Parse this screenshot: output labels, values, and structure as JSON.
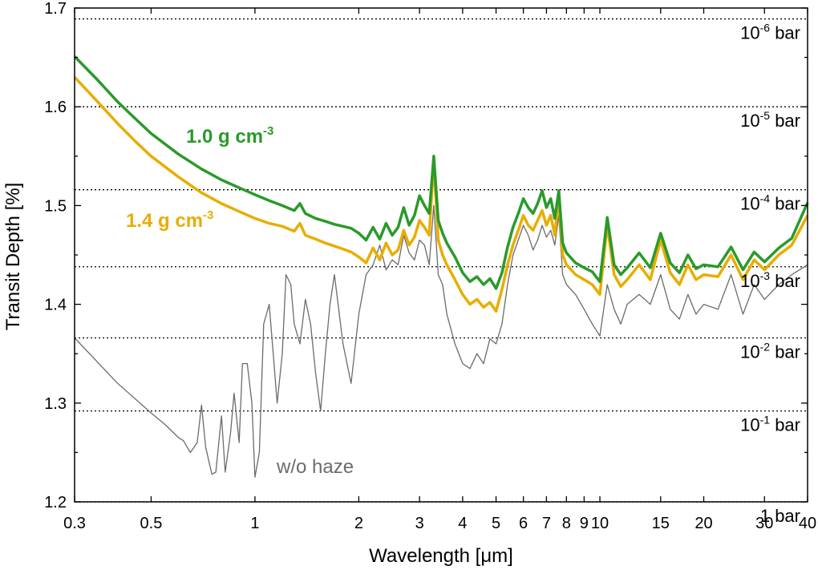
{
  "chart_data": {
    "type": "line",
    "xlabel_prefix": "Wavelength [",
    "xlabel_mu": "μ",
    "xlabel_suffix": "m]",
    "ylabel": "Transit Depth [%]",
    "xscale": "log",
    "xlim": [
      0.3,
      40
    ],
    "ylim": [
      1.2,
      1.7
    ],
    "x_ticks": [
      {
        "value": 0.3,
        "label": "0.3"
      },
      {
        "value": 0.5,
        "label": "0.5"
      },
      {
        "value": 1,
        "label": "1"
      },
      {
        "value": 2,
        "label": "2"
      },
      {
        "value": 3,
        "label": "3"
      },
      {
        "value": 4,
        "label": "4"
      },
      {
        "value": 5,
        "label": "5"
      },
      {
        "value": 6,
        "label": "6"
      },
      {
        "value": 7,
        "label": "7"
      },
      {
        "value": 8,
        "label": "8"
      },
      {
        "value": 9,
        "label": "9"
      },
      {
        "value": 10,
        "label": "10"
      },
      {
        "value": 15,
        "label": "15"
      },
      {
        "value": 20,
        "label": "20"
      },
      {
        "value": 30,
        "label": "30"
      },
      {
        "value": 40,
        "label": "40"
      }
    ],
    "y_ticks": [
      {
        "value": 1.2,
        "label": "1.2"
      },
      {
        "value": 1.3,
        "label": "1.3"
      },
      {
        "value": 1.4,
        "label": "1.4"
      },
      {
        "value": 1.5,
        "label": "1.5"
      },
      {
        "value": 1.6,
        "label": "1.6"
      },
      {
        "value": 1.7,
        "label": "1.7"
      }
    ],
    "pressure_levels": [
      {
        "y": 1.689,
        "base": "10",
        "exp": "-6",
        "unit": " bar"
      },
      {
        "y": 1.6,
        "base": "10",
        "exp": "-5",
        "unit": " bar"
      },
      {
        "y": 1.516,
        "base": "10",
        "exp": "-4",
        "unit": " bar"
      },
      {
        "y": 1.438,
        "base": "10",
        "exp": "-3",
        "unit": " bar"
      },
      {
        "y": 1.366,
        "base": "10",
        "exp": "-2",
        "unit": " bar"
      },
      {
        "y": 1.292,
        "base": "10",
        "exp": "-1",
        "unit": " bar"
      },
      {
        "y": 1.2,
        "base": "1",
        "exp": "",
        "unit": " bar"
      }
    ],
    "series": [
      {
        "name": "w/o haze",
        "color": "#6b6b6b",
        "x": [
          0.3,
          0.4,
          0.5,
          0.55,
          0.6,
          0.62,
          0.65,
          0.68,
          0.7,
          0.72,
          0.75,
          0.77,
          0.8,
          0.82,
          0.85,
          0.87,
          0.9,
          0.92,
          0.95,
          0.98,
          1.0,
          1.03,
          1.06,
          1.1,
          1.13,
          1.16,
          1.2,
          1.23,
          1.27,
          1.3,
          1.35,
          1.4,
          1.45,
          1.5,
          1.55,
          1.6,
          1.65,
          1.7,
          1.8,
          1.9,
          2.0,
          2.1,
          2.2,
          2.3,
          2.4,
          2.5,
          2.6,
          2.7,
          2.8,
          2.9,
          3.0,
          3.1,
          3.2,
          3.3,
          3.4,
          3.5,
          3.6,
          3.8,
          4.0,
          4.2,
          4.4,
          4.6,
          4.8,
          5.0,
          5.2,
          5.4,
          5.6,
          5.8,
          6.0,
          6.2,
          6.4,
          6.6,
          6.8,
          7.0,
          7.2,
          7.4,
          7.6,
          7.8,
          8.0,
          8.5,
          9.0,
          9.5,
          10.0,
          10.5,
          11.0,
          11.5,
          12.0,
          13.0,
          14.0,
          15.0,
          16.0,
          17.0,
          18.0,
          19.0,
          20.0,
          22.0,
          24.0,
          26.0,
          28.0,
          30.0,
          33.0,
          36.0,
          40.0
        ],
        "values": [
          1.366,
          1.32,
          1.29,
          1.278,
          1.265,
          1.262,
          1.25,
          1.26,
          1.298,
          1.255,
          1.228,
          1.23,
          1.287,
          1.23,
          1.27,
          1.31,
          1.26,
          1.34,
          1.34,
          1.3,
          1.225,
          1.25,
          1.38,
          1.4,
          1.35,
          1.3,
          1.35,
          1.43,
          1.42,
          1.38,
          1.36,
          1.405,
          1.38,
          1.33,
          1.292,
          1.35,
          1.4,
          1.43,
          1.36,
          1.32,
          1.39,
          1.43,
          1.44,
          1.46,
          1.435,
          1.445,
          1.44,
          1.47,
          1.452,
          1.445,
          1.465,
          1.46,
          1.44,
          1.5,
          1.43,
          1.42,
          1.39,
          1.36,
          1.34,
          1.335,
          1.35,
          1.34,
          1.365,
          1.36,
          1.38,
          1.42,
          1.45,
          1.465,
          1.48,
          1.47,
          1.455,
          1.465,
          1.48,
          1.468,
          1.475,
          1.46,
          1.49,
          1.43,
          1.42,
          1.41,
          1.395,
          1.38,
          1.368,
          1.42,
          1.395,
          1.38,
          1.4,
          1.41,
          1.4,
          1.43,
          1.395,
          1.385,
          1.41,
          1.39,
          1.4,
          1.395,
          1.43,
          1.39,
          1.42,
          1.405,
          1.42,
          1.43,
          1.44
        ]
      },
      {
        "name": "1.4 g cm-3",
        "label_text": "1.4 g cm",
        "label_exp": "-3",
        "color": "#e8ad00",
        "x": [
          0.3,
          0.35,
          0.4,
          0.45,
          0.5,
          0.6,
          0.7,
          0.8,
          0.9,
          1.0,
          1.1,
          1.2,
          1.3,
          1.35,
          1.4,
          1.5,
          1.6,
          1.7,
          1.8,
          1.9,
          2.0,
          2.1,
          2.2,
          2.3,
          2.4,
          2.5,
          2.6,
          2.7,
          2.8,
          2.9,
          3.0,
          3.1,
          3.2,
          3.3,
          3.4,
          3.5,
          3.6,
          3.8,
          4.0,
          4.2,
          4.4,
          4.6,
          4.8,
          5.0,
          5.2,
          5.4,
          5.6,
          5.8,
          6.0,
          6.2,
          6.4,
          6.6,
          6.8,
          7.0,
          7.2,
          7.4,
          7.6,
          7.8,
          8.0,
          8.5,
          9.0,
          9.5,
          10.0,
          10.5,
          11.0,
          11.5,
          12.0,
          13.0,
          14.0,
          15.0,
          16.0,
          17.0,
          18.0,
          19.0,
          20.0,
          22.0,
          24.0,
          26.0,
          28.0,
          30.0,
          33.0,
          36.0,
          40.0
        ],
        "values": [
          1.63,
          1.605,
          1.583,
          1.565,
          1.55,
          1.529,
          1.513,
          1.502,
          1.494,
          1.487,
          1.482,
          1.479,
          1.474,
          1.482,
          1.47,
          1.466,
          1.462,
          1.459,
          1.456,
          1.453,
          1.448,
          1.442,
          1.457,
          1.445,
          1.462,
          1.45,
          1.455,
          1.475,
          1.46,
          1.468,
          1.485,
          1.478,
          1.47,
          1.545,
          1.465,
          1.45,
          1.44,
          1.425,
          1.41,
          1.4,
          1.405,
          1.397,
          1.402,
          1.393,
          1.415,
          1.44,
          1.46,
          1.475,
          1.49,
          1.48,
          1.475,
          1.485,
          1.495,
          1.48,
          1.49,
          1.47,
          1.51,
          1.45,
          1.44,
          1.43,
          1.425,
          1.42,
          1.41,
          1.48,
          1.43,
          1.418,
          1.425,
          1.44,
          1.425,
          1.465,
          1.432,
          1.42,
          1.44,
          1.425,
          1.43,
          1.428,
          1.45,
          1.425,
          1.445,
          1.435,
          1.45,
          1.46,
          1.49
        ]
      },
      {
        "name": "1.0 g cm-3",
        "label_text": "1.0 g cm",
        "label_exp": "-3",
        "color": "#2a9a2a",
        "x": [
          0.3,
          0.35,
          0.4,
          0.45,
          0.5,
          0.6,
          0.7,
          0.8,
          0.9,
          1.0,
          1.1,
          1.2,
          1.3,
          1.35,
          1.4,
          1.5,
          1.6,
          1.7,
          1.8,
          1.9,
          2.0,
          2.1,
          2.2,
          2.3,
          2.4,
          2.5,
          2.6,
          2.7,
          2.8,
          2.9,
          3.0,
          3.1,
          3.2,
          3.3,
          3.4,
          3.5,
          3.6,
          3.8,
          4.0,
          4.2,
          4.4,
          4.6,
          4.8,
          5.0,
          5.2,
          5.4,
          5.6,
          5.8,
          6.0,
          6.2,
          6.4,
          6.6,
          6.8,
          7.0,
          7.2,
          7.4,
          7.6,
          7.8,
          8.0,
          8.5,
          9.0,
          9.5,
          10.0,
          10.5,
          11.0,
          11.5,
          12.0,
          13.0,
          14.0,
          15.0,
          16.0,
          17.0,
          18.0,
          19.0,
          20.0,
          22.0,
          24.0,
          26.0,
          28.0,
          30.0,
          33.0,
          36.0,
          40.0
        ],
        "values": [
          1.651,
          1.627,
          1.605,
          1.588,
          1.573,
          1.552,
          1.537,
          1.526,
          1.518,
          1.511,
          1.505,
          1.5,
          1.495,
          1.502,
          1.492,
          1.487,
          1.484,
          1.481,
          1.479,
          1.477,
          1.472,
          1.465,
          1.478,
          1.466,
          1.482,
          1.47,
          1.478,
          1.498,
          1.48,
          1.49,
          1.51,
          1.5,
          1.492,
          1.55,
          1.485,
          1.472,
          1.462,
          1.448,
          1.432,
          1.423,
          1.428,
          1.42,
          1.426,
          1.416,
          1.432,
          1.458,
          1.478,
          1.492,
          1.507,
          1.498,
          1.492,
          1.502,
          1.515,
          1.498,
          1.507,
          1.487,
          1.515,
          1.462,
          1.452,
          1.442,
          1.437,
          1.433,
          1.423,
          1.488,
          1.44,
          1.43,
          1.437,
          1.452,
          1.437,
          1.472,
          1.442,
          1.432,
          1.45,
          1.436,
          1.44,
          1.438,
          1.458,
          1.435,
          1.453,
          1.443,
          1.457,
          1.467,
          1.503
        ]
      }
    ]
  }
}
